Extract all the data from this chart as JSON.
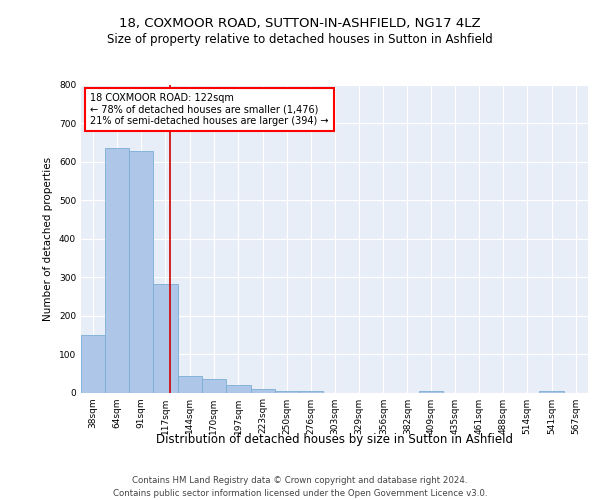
{
  "title_line1": "18, COXMOOR ROAD, SUTTON-IN-ASHFIELD, NG17 4LZ",
  "title_line2": "Size of property relative to detached houses in Sutton in Ashfield",
  "xlabel": "Distribution of detached houses by size in Sutton in Ashfield",
  "ylabel": "Number of detached properties",
  "footer_line1": "Contains HM Land Registry data © Crown copyright and database right 2024.",
  "footer_line2": "Contains public sector information licensed under the Open Government Licence v3.0.",
  "annotation_line1": "18 COXMOOR ROAD: 122sqm",
  "annotation_line2": "← 78% of detached houses are smaller (1,476)",
  "annotation_line3": "21% of semi-detached houses are larger (394) →",
  "bar_color": "#aec6e8",
  "bar_edge_color": "#7aadd4",
  "ref_line_color": "#cc0000",
  "ref_line_x": 122,
  "categories": [
    "38sqm",
    "64sqm",
    "91sqm",
    "117sqm",
    "144sqm",
    "170sqm",
    "197sqm",
    "223sqm",
    "250sqm",
    "276sqm",
    "303sqm",
    "329sqm",
    "356sqm",
    "382sqm",
    "409sqm",
    "435sqm",
    "461sqm",
    "488sqm",
    "514sqm",
    "541sqm",
    "567sqm"
  ],
  "bin_edges": [
    25,
    51,
    77,
    103,
    130,
    156,
    182,
    209,
    235,
    261,
    287,
    313,
    340,
    366,
    392,
    418,
    444,
    470,
    496,
    522,
    549,
    575
  ],
  "values": [
    150,
    635,
    628,
    283,
    43,
    35,
    20,
    8,
    5,
    5,
    0,
    0,
    0,
    0,
    5,
    0,
    0,
    0,
    0,
    5,
    0
  ],
  "ylim": [
    0,
    800
  ],
  "yticks": [
    0,
    100,
    200,
    300,
    400,
    500,
    600,
    700,
    800
  ],
  "background_color": "#e8eef7",
  "fig_bg": "#ffffff"
}
